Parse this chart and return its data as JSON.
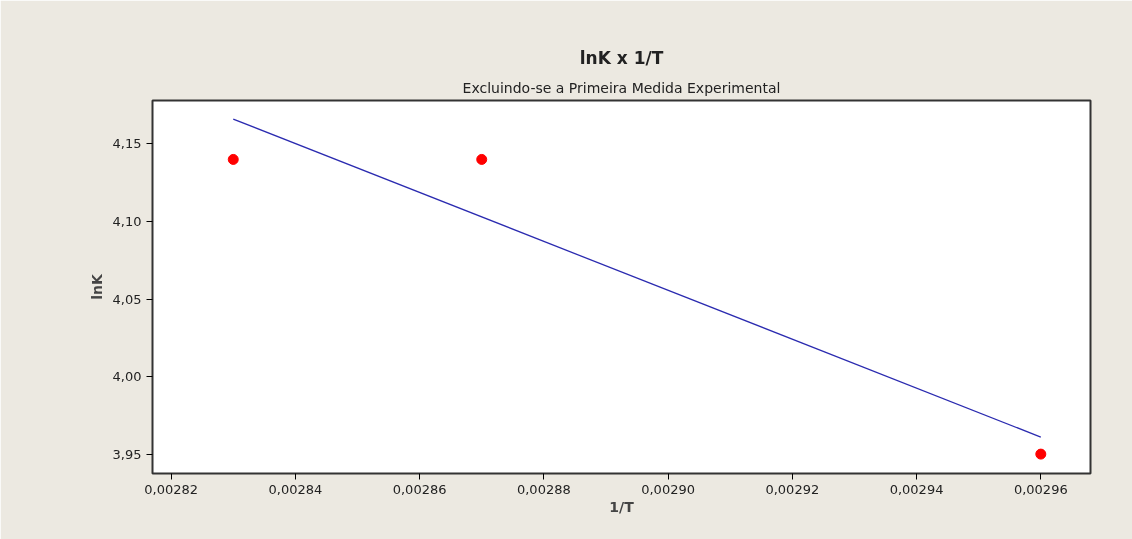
{
  "chart_data": {
    "type": "scatter",
    "title": "lnK x 1/T",
    "subtitle": "Excluindo-se a Primeira Medida Experimental",
    "xlabel": "1/T",
    "ylabel": "lnK",
    "series": [
      {
        "color": "#ff0000",
        "x": [
          0.00283,
          0.00287,
          0.00296
        ],
        "values": [
          4.14,
          4.14,
          3.95
        ],
        "marker": "circle"
      },
      {
        "type": "line",
        "color": "#2b2bb0",
        "x": [
          0.00283,
          0.00296
        ],
        "values": [
          4.166,
          3.961
        ],
        "line_style": "solid"
      }
    ],
    "xlim": [
      0.002817,
      0.002968
    ],
    "ylim": [
      3.9375,
      4.178
    ],
    "xticks": [
      {
        "value": 0.00282,
        "label": "0,00282"
      },
      {
        "value": 0.00284,
        "label": "0,00284"
      },
      {
        "value": 0.00286,
        "label": "0,00286"
      },
      {
        "value": 0.00288,
        "label": "0,00288"
      },
      {
        "value": 0.0029,
        "label": "0,00290"
      },
      {
        "value": 0.00292,
        "label": "0,00292"
      },
      {
        "value": 0.00294,
        "label": "0,00294"
      },
      {
        "value": 0.00296,
        "label": "0,00296"
      }
    ],
    "yticks": [
      {
        "value": 3.95,
        "label": "3,95"
      },
      {
        "value": 4.0,
        "label": "4,00"
      },
      {
        "value": 4.05,
        "label": "4,05"
      },
      {
        "value": 4.1,
        "label": "4,10"
      },
      {
        "value": 4.15,
        "label": "4,15"
      }
    ],
    "grid": false
  }
}
